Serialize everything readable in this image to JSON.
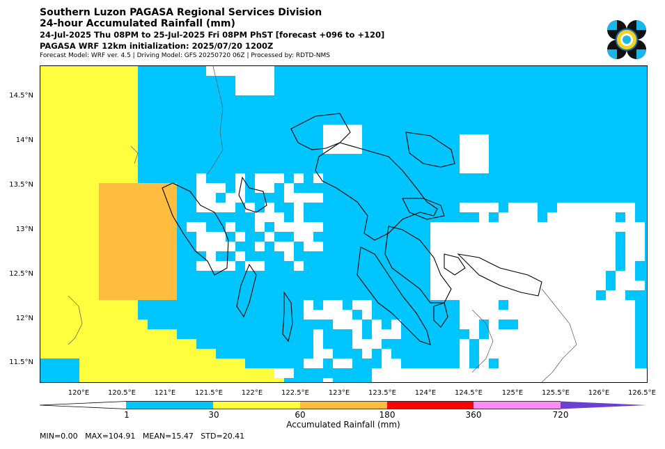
{
  "header": {
    "title": "Southern Luzon PAGASA Regional Services Division",
    "subtitle": "24-hour Accumulated Rainfall (mm)",
    "period": "24-Jul-2025 Thu 08PM to 25-Jul-2025 Fri 08PM PhST [forecast +096 to +120]",
    "model": "PAGASA WRF 12km initialization: 2025/07/20 1200Z",
    "credits": "Forecast Model: WRF ver. 4.5 | Driving Model: GFS 20250720 06Z | Processed by: RDTD-NMS"
  },
  "map": {
    "lon_ticks": [
      "120°E",
      "120.5°E",
      "121°E",
      "121.5°E",
      "122°E",
      "122.5°E",
      "123°E",
      "123.5°E",
      "124°E",
      "124.5°E",
      "125°E",
      "125.5°E",
      "126°E",
      "126.5°E"
    ],
    "lat_ticks": [
      "14.5°N",
      "14°N",
      "13.5°N",
      "13°N",
      "12.5°N",
      "12°N",
      "11.5°N"
    ],
    "lon_range": [
      119.5,
      126.5
    ],
    "lat_range": [
      11.3,
      14.85
    ]
  },
  "legend": {
    "title": "Accumulated Rainfall (mm)",
    "labels": [
      "1",
      "30",
      "60",
      "180",
      "360",
      "720"
    ],
    "colors": [
      "#00c5ff",
      "#ffff3f",
      "#ffbd3f",
      "#ff0000",
      "#ff8cf5",
      "#6b3fcf"
    ]
  },
  "stats": {
    "text": "MIN=0.00   MAX=104.91   MEAN=15.47   STD=20.41"
  }
}
